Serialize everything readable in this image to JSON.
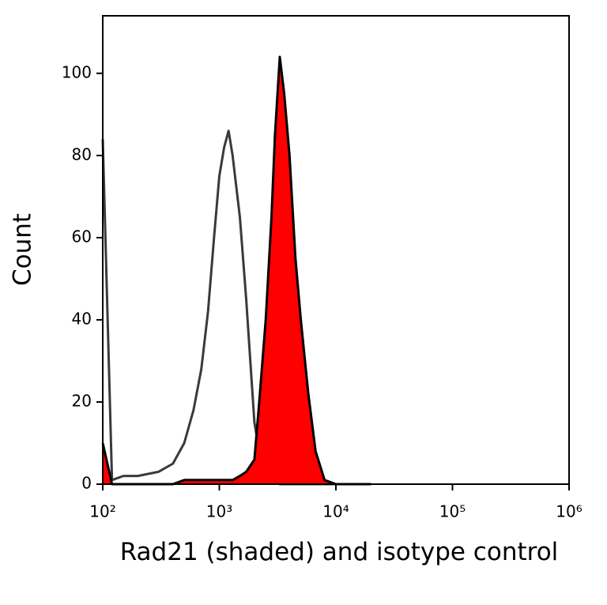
{
  "chart_data": {
    "type": "line",
    "xscale": "log",
    "x_label": "Rad21 (shaded) and isotype control",
    "y_label": "Count",
    "x": [
      100,
      120,
      150,
      200,
      300,
      400,
      500,
      600,
      700,
      800,
      900,
      1000,
      1100,
      1200,
      1300,
      1500,
      1700,
      2000,
      2200,
      2500,
      2800,
      3000,
      3300,
      3600,
      4000,
      4500,
      5000,
      5800,
      6700,
      8000,
      10000,
      15000,
      20000
    ],
    "series": [
      {
        "color": "#3a3a3a",
        "values": [
          84,
          1,
          2,
          2,
          3,
          5,
          10,
          18,
          28,
          42,
          60,
          75,
          82,
          86,
          80,
          65,
          45,
          15,
          8,
          3,
          1,
          1,
          0,
          0,
          0,
          0,
          0,
          0,
          0,
          0,
          0,
          0,
          0
        ]
      },
      {
        "color": "#000000",
        "fill": "#ff0000",
        "values": [
          10,
          0,
          0,
          0,
          0,
          0,
          1,
          1,
          1,
          1,
          1,
          1,
          1,
          1,
          1,
          2,
          3,
          6,
          20,
          40,
          65,
          85,
          104,
          95,
          80,
          55,
          40,
          22,
          8,
          1,
          0,
          0,
          0
        ]
      }
    ],
    "xlim": [
      100,
      1000000
    ],
    "xticks": [
      {
        "value": 100,
        "label": "10²"
      },
      {
        "value": 1000,
        "label": "10³"
      },
      {
        "value": 10000,
        "label": "10⁴"
      },
      {
        "value": 100000,
        "label": "10⁵"
      },
      {
        "value": 1000000,
        "label": "10⁶"
      }
    ],
    "ylim": [
      0,
      114
    ],
    "yticks": [
      0,
      20,
      40,
      60,
      80,
      100
    ],
    "grid": false
  }
}
